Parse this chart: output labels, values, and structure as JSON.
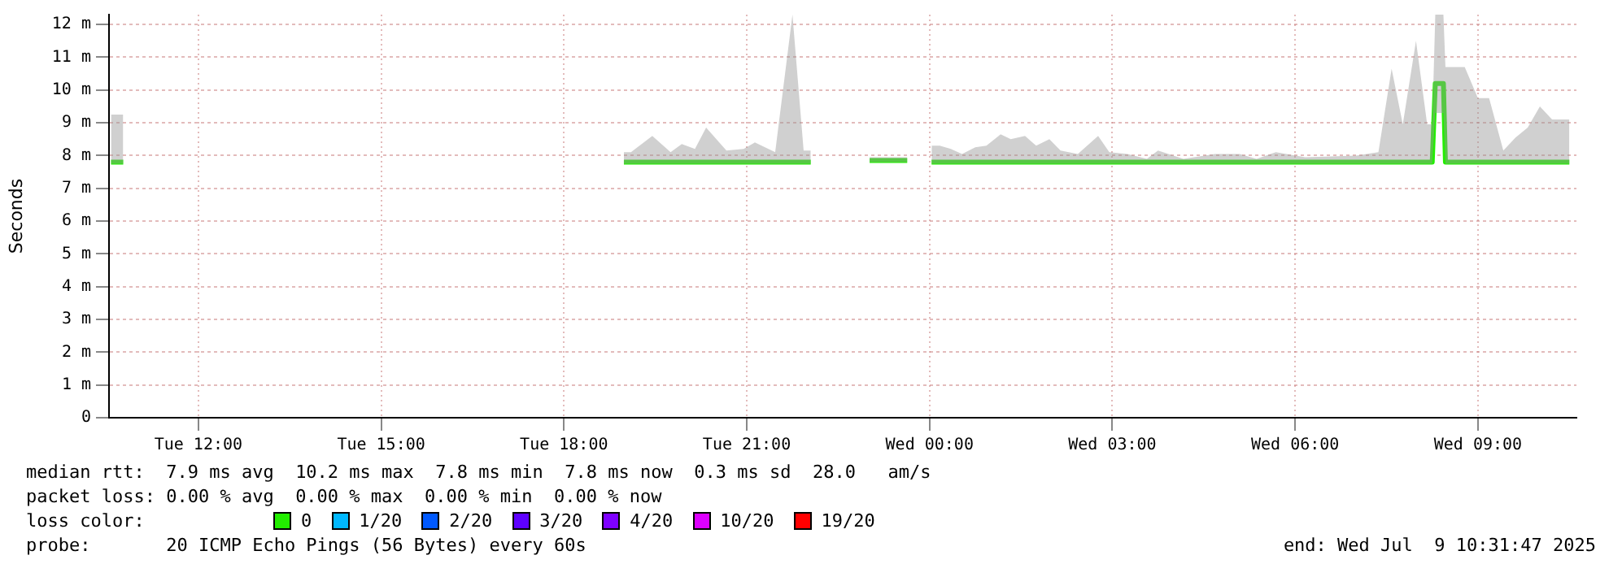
{
  "chart_data": {
    "type": "line",
    "ylabel": "Seconds",
    "xlim": [
      "2025-07-08T10:32",
      "2025-07-09T10:37"
    ],
    "xticks": [
      {
        "value": "2025-07-08T12:00",
        "label": "Tue 12:00"
      },
      {
        "value": "2025-07-08T15:00",
        "label": "Tue 15:00"
      },
      {
        "value": "2025-07-08T18:00",
        "label": "Tue 18:00"
      },
      {
        "value": "2025-07-08T21:00",
        "label": "Tue 21:00"
      },
      {
        "value": "2025-07-09T00:00",
        "label": "Wed 00:00"
      },
      {
        "value": "2025-07-09T03:00",
        "label": "Wed 03:00"
      },
      {
        "value": "2025-07-09T06:00",
        "label": "Wed 06:00"
      },
      {
        "value": "2025-07-09T09:00",
        "label": "Wed 09:00"
      }
    ],
    "ylim": [
      0,
      12.3
    ],
    "yticks": [
      0,
      {
        "value": 1,
        "label": "1 m"
      },
      {
        "value": 2,
        "label": "2 m"
      },
      {
        "value": 3,
        "label": "3 m"
      },
      {
        "value": 4,
        "label": "4 m"
      },
      {
        "value": 5,
        "label": "5 m"
      },
      {
        "value": 6,
        "label": "6 m"
      },
      {
        "value": 7,
        "label": "7 m"
      },
      {
        "value": 8,
        "label": "8 m"
      },
      {
        "value": 9,
        "label": "9 m"
      },
      {
        "value": 10,
        "label": "10 m"
      },
      {
        "value": 11,
        "label": "11 m"
      },
      {
        "value": 12,
        "label": "12 m"
      }
    ],
    "grid": true,
    "legend": "bottom",
    "legend_title": "loss color:",
    "series": [
      {
        "name": "0",
        "color": "#22ee00",
        "x": [
          "2025-07-08T10:34",
          "2025-07-08T10:46",
          "2025-07-08T15:00",
          "2025-07-08T18:59",
          "2025-07-08T19:06",
          "2025-07-08T19:27",
          "2025-07-08T19:45",
          "2025-07-08T19:56",
          "2025-07-08T20:09",
          "2025-07-08T20:20",
          "2025-07-08T20:40",
          "2025-07-08T20:57",
          "2025-07-08T21:08",
          "2025-07-08T21:28",
          "2025-07-08T21:45",
          "2025-07-08T21:56",
          "2025-07-08T22:03",
          "2025-07-08T22:30",
          "2025-07-08T23:01",
          "2025-07-08T23:38",
          "2025-07-08T23:48",
          "2025-07-09T00:02",
          "2025-07-09T00:10",
          "2025-07-09T00:21",
          "2025-07-09T00:32",
          "2025-07-09T00:45",
          "2025-07-09T00:56",
          "2025-07-09T01:10",
          "2025-07-09T01:20",
          "2025-07-09T01:34",
          "2025-07-09T01:45",
          "2025-07-09T01:58",
          "2025-07-09T02:09",
          "2025-07-09T02:26",
          "2025-07-09T02:46",
          "2025-07-09T02:57",
          "2025-07-09T03:15",
          "2025-07-09T03:34",
          "2025-07-09T03:45",
          "2025-07-09T04:10",
          "2025-07-09T04:41",
          "2025-07-09T05:05",
          "2025-07-09T05:22",
          "2025-07-09T05:41",
          "2025-07-09T06:10",
          "2025-07-09T07:00",
          "2025-07-09T07:22",
          "2025-07-09T07:35",
          "2025-07-09T07:46",
          "2025-07-09T07:59",
          "2025-07-09T08:10",
          "2025-07-09T08:15",
          "2025-07-09T08:18",
          "2025-07-09T08:26",
          "2025-07-09T08:28",
          "2025-07-09T08:35",
          "2025-07-09T08:47",
          "2025-07-09T09:00",
          "2025-07-09T09:11",
          "2025-07-09T09:25",
          "2025-07-09T09:37",
          "2025-07-09T09:49",
          "2025-07-09T10:01",
          "2025-07-09T10:13",
          "2025-07-09T10:24",
          "2025-07-09T10:30"
        ],
        "values": [
          7.8,
          7.8,
          null,
          7.8,
          7.8,
          7.8,
          7.8,
          7.8,
          7.8,
          7.8,
          7.8,
          7.8,
          7.8,
          7.8,
          7.8,
          7.8,
          7.8,
          null,
          7.85,
          7.85,
          null,
          7.8,
          7.8,
          7.8,
          7.8,
          7.8,
          7.8,
          7.8,
          7.8,
          7.8,
          7.8,
          7.8,
          7.8,
          7.8,
          7.8,
          7.8,
          7.8,
          7.8,
          7.8,
          7.8,
          7.8,
          7.8,
          7.8,
          7.8,
          7.8,
          7.8,
          7.8,
          7.8,
          7.8,
          7.8,
          7.8,
          7.8,
          10.2,
          10.2,
          7.8,
          7.8,
          7.8,
          7.8,
          7.8,
          7.8,
          7.8,
          7.8,
          7.8,
          7.8,
          7.8,
          7.8
        ],
        "lower": [
          7.75,
          7.75,
          null,
          7.75,
          7.75,
          7.75,
          7.75,
          7.75,
          7.75,
          7.75,
          7.75,
          7.75,
          7.75,
          7.75,
          7.75,
          7.75,
          7.75,
          null,
          7.8,
          7.8,
          null,
          7.75,
          7.75,
          7.75,
          7.75,
          7.75,
          7.75,
          7.75,
          7.75,
          7.75,
          7.75,
          7.75,
          7.75,
          7.75,
          7.75,
          7.75,
          7.75,
          7.75,
          7.75,
          7.75,
          7.75,
          7.75,
          7.75,
          7.75,
          7.75,
          7.75,
          7.75,
          7.75,
          7.75,
          7.75,
          7.75,
          7.75,
          9.3,
          9.3,
          7.75,
          7.75,
          7.75,
          7.75,
          7.75,
          7.75,
          7.75,
          7.75,
          7.75,
          7.75,
          7.75,
          7.75
        ],
        "upper": [
          9.25,
          9.25,
          null,
          8.1,
          8.1,
          8.6,
          8.1,
          8.35,
          8.2,
          8.85,
          8.15,
          8.2,
          8.4,
          8.1,
          12.3,
          8.15,
          8.15,
          null,
          7.95,
          7.95,
          null,
          8.3,
          8.3,
          8.2,
          8.05,
          8.25,
          8.3,
          8.65,
          8.5,
          8.6,
          8.3,
          8.5,
          8.15,
          8.05,
          8.6,
          8.1,
          8.05,
          7.9,
          8.15,
          7.9,
          8.05,
          8.05,
          7.9,
          8.1,
          7.95,
          8.0,
          8.1,
          10.65,
          8.95,
          11.5,
          8.95,
          8.95,
          12.3,
          12.3,
          10.7,
          10.7,
          10.7,
          9.75,
          9.75,
          8.15,
          8.55,
          8.85,
          9.5,
          9.1,
          9.1,
          9.1
        ]
      },
      {
        "name": "1/20",
        "color": "#00b8ff"
      },
      {
        "name": "2/20",
        "color": "#0059ff"
      },
      {
        "name": "3/20",
        "color": "#5e00ff"
      },
      {
        "name": "4/20",
        "color": "#7e00ff"
      },
      {
        "name": "10/20",
        "color": "#dd00ff"
      },
      {
        "name": "19/20",
        "color": "#ff0000"
      }
    ],
    "annotations": [
      "median rtt:  7.9 ms avg  10.2 ms max  7.8 ms min  7.8 ms now  0.3 ms sd  28.0   am/s",
      "packet loss: 0.00 % avg  0.00 % max  0.00 % min  0.00 % now",
      "probe:       20 ICMP Echo Pings (56 Bytes) every 60s",
      "end: Wed Jul  9 10:31:47 2025"
    ]
  }
}
